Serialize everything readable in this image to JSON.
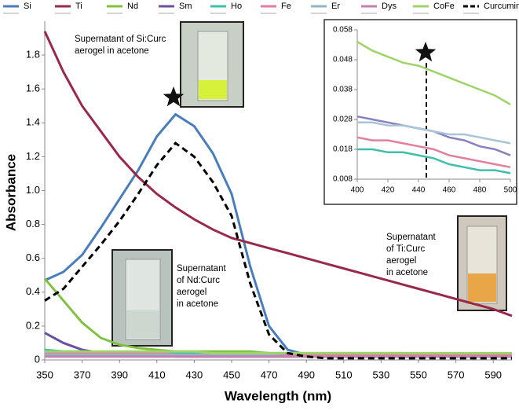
{
  "chart_data": [
    {
      "type": "line",
      "x_label": "Wavelength (nm)",
      "y_label": "Absorbance",
      "x": [
        350,
        360,
        370,
        380,
        390,
        400,
        410,
        420,
        430,
        440,
        450,
        460,
        470,
        480,
        490,
        500,
        510,
        520,
        530,
        540,
        550,
        560,
        570,
        580,
        590,
        600
      ],
      "xlim": [
        350,
        600
      ],
      "xticks": [
        350,
        370,
        390,
        410,
        430,
        450,
        470,
        490,
        510,
        530,
        550,
        570,
        590
      ],
      "ylim": [
        0,
        2
      ],
      "yticks": [
        0,
        0.2,
        0.4,
        0.6,
        0.8,
        {
          "value": 1,
          "label": "1.0"
        },
        1.2,
        1.4,
        1.6,
        1.8
      ],
      "grid": false,
      "series": [
        {
          "name": "Si",
          "color": "#4a7ebb",
          "values": [
            0.47,
            0.52,
            0.62,
            0.78,
            0.95,
            1.12,
            1.32,
            1.45,
            1.38,
            1.22,
            0.98,
            0.55,
            0.2,
            0.06,
            0.03,
            0.02,
            0.02,
            0.02,
            0.02,
            0.02,
            0.02,
            0.02,
            0.02,
            0.02,
            0.02,
            0.02
          ]
        },
        {
          "name": "Ti",
          "color": "#98294a",
          "values": [
            1.94,
            1.7,
            1.5,
            1.35,
            1.2,
            1.08,
            0.98,
            0.9,
            0.83,
            0.77,
            0.72,
            0.69,
            0.66,
            0.63,
            0.6,
            0.57,
            0.54,
            0.51,
            0.48,
            0.45,
            0.42,
            0.39,
            0.36,
            0.33,
            0.3,
            0.26
          ]
        },
        {
          "name": "Nd",
          "color": "#7fc241",
          "values": [
            0.48,
            0.35,
            0.22,
            0.13,
            0.09,
            0.07,
            0.06,
            0.05,
            0.05,
            0.05,
            0.05,
            0.05,
            0.04,
            0.04,
            0.04,
            0.04,
            0.04,
            0.04,
            0.04,
            0.04,
            0.03,
            0.03,
            0.03,
            0.03,
            0.03,
            0.03
          ]
        },
        {
          "name": "Sm",
          "color": "#6b4fa0",
          "values": [
            0.16,
            0.1,
            0.06,
            0.04,
            0.03,
            0.03,
            0.03,
            0.02,
            0.02,
            0.02,
            0.02,
            0.02,
            0.02,
            0.02,
            0.02,
            0.02,
            0.02,
            0.02,
            0.02,
            0.02,
            0.02,
            0.02,
            0.02,
            0.02,
            0.02,
            0.02
          ]
        },
        {
          "name": "Ho",
          "color": "#3fbfaa",
          "values": [
            0.06,
            0.05,
            0.05,
            0.04,
            0.04,
            0.04,
            0.04,
            0.04,
            0.04,
            0.04,
            0.04,
            0.04,
            0.04,
            0.03,
            0.03,
            0.03,
            0.03,
            0.03,
            0.03,
            0.03,
            0.03,
            0.03,
            0.03,
            0.03,
            0.03,
            0.03
          ]
        },
        {
          "name": "Fe",
          "color": "#e07f9f",
          "values": [
            0.04,
            0.04,
            0.04,
            0.04,
            0.04,
            0.04,
            0.04,
            0.03,
            0.03,
            0.03,
            0.03,
            0.03,
            0.03,
            0.03,
            0.03,
            0.03,
            0.03,
            0.03,
            0.03,
            0.03,
            0.03,
            0.03,
            0.03,
            0.03,
            0.03,
            0.03
          ]
        },
        {
          "name": "Er",
          "color": "#93b3c8",
          "values": [
            0.03,
            0.03,
            0.03,
            0.03,
            0.03,
            0.03,
            0.03,
            0.03,
            0.03,
            0.03,
            0.03,
            0.03,
            0.03,
            0.02,
            0.02,
            0.02,
            0.02,
            0.02,
            0.02,
            0.02,
            0.02,
            0.02,
            0.02,
            0.02,
            0.02,
            0.02
          ]
        },
        {
          "name": "Dys",
          "color": "#c77fae",
          "values": [
            0.02,
            0.02,
            0.02,
            0.02,
            0.02,
            0.02,
            0.02,
            0.02,
            0.02,
            0.02,
            0.02,
            0.02,
            0.02,
            0.02,
            0.02,
            0.02,
            0.02,
            0.02,
            0.02,
            0.02,
            0.02,
            0.02,
            0.02,
            0.02,
            0.02,
            0.02
          ]
        },
        {
          "name": "CoFe",
          "color": "#9ed36a",
          "values": [
            0.05,
            0.05,
            0.05,
            0.05,
            0.05,
            0.05,
            0.05,
            0.05,
            0.05,
            0.04,
            0.04,
            0.04,
            0.04,
            0.04,
            0.04,
            0.04,
            0.04,
            0.04,
            0.04,
            0.04,
            0.04,
            0.04,
            0.04,
            0.04,
            0.04,
            0.04
          ]
        },
        {
          "name": "Curcumin",
          "color": "#000000",
          "style": "dashed",
          "values": [
            0.35,
            0.42,
            0.55,
            0.68,
            0.82,
            0.98,
            1.15,
            1.28,
            1.2,
            1.05,
            0.85,
            0.45,
            0.15,
            0.04,
            0.02,
            0.01,
            0.01,
            0.01,
            0.01,
            0.01,
            0.01,
            0.01,
            0.01,
            0.01,
            0.01,
            0.01
          ]
        }
      ],
      "annotations": [
        [
          "Supernatant of Si:Curc",
          "aerogel in acetone"
        ],
        [
          "Supernatant",
          "of Nd:Curc",
          "aerogel",
          "in acetone"
        ],
        [
          "Supernatant",
          "of Ti:Curc",
          "aerogel",
          "in acetone"
        ]
      ]
    },
    {
      "type": "line",
      "x": [
        400,
        410,
        420,
        430,
        440,
        450,
        460,
        470,
        480,
        490,
        500
      ],
      "xlim": [
        400,
        500
      ],
      "xticks": [
        400,
        420,
        440,
        460,
        480,
        500
      ],
      "ylim": [
        0.008,
        0.058
      ],
      "yticks": [
        0.008,
        0.018,
        0.028,
        0.038,
        0.048,
        0.058
      ],
      "series": [
        {
          "name": "CoFe",
          "color": "#9ed36a",
          "values": [
            0.054,
            0.051,
            0.049,
            0.047,
            0.046,
            0.044,
            0.042,
            0.04,
            0.038,
            0.036,
            0.033
          ]
        },
        {
          "name": "Sm",
          "color": "#8a7fc0",
          "values": [
            0.029,
            0.028,
            0.027,
            0.026,
            0.025,
            0.024,
            0.022,
            0.021,
            0.019,
            0.018,
            0.016
          ]
        },
        {
          "name": "Er",
          "color": "#a9c4d6",
          "values": [
            0.027,
            0.027,
            0.026,
            0.026,
            0.025,
            0.024,
            0.023,
            0.023,
            0.022,
            0.021,
            0.02
          ]
        },
        {
          "name": "Fe",
          "color": "#e07f9f",
          "values": [
            0.022,
            0.021,
            0.021,
            0.02,
            0.019,
            0.018,
            0.016,
            0.015,
            0.014,
            0.013,
            0.012
          ]
        },
        {
          "name": "Ho",
          "color": "#3fbfaa",
          "values": [
            0.018,
            0.018,
            0.017,
            0.017,
            0.016,
            0.015,
            0.013,
            0.012,
            0.011,
            0.011,
            0.01
          ]
        }
      ]
    }
  ]
}
